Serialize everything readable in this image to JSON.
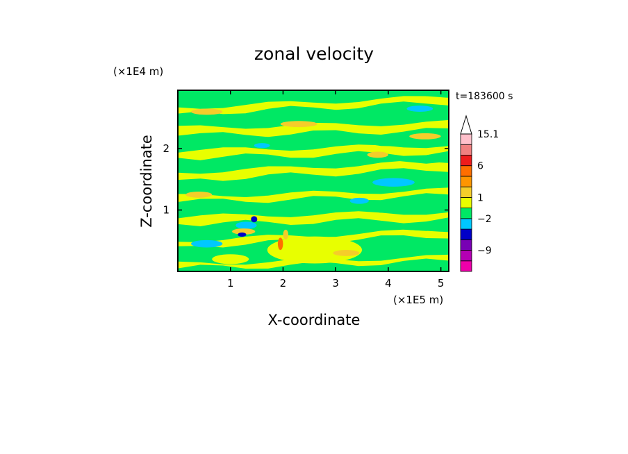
{
  "chart_data": {
    "type": "heatmap",
    "title": "zonal velocity",
    "xlabel": "X-coordinate",
    "ylabel": "Z-coordinate",
    "x_unit": "(×1E5 m)",
    "y_unit": "(×1E4 m)",
    "time_label": "t=183600 s",
    "xlim": [
      0,
      5.15
    ],
    "ylim": [
      0,
      2.95
    ],
    "x_ticks": [
      1,
      2,
      3,
      4,
      5
    ],
    "y_ticks": [
      1,
      2
    ],
    "colorbar": {
      "levels": [
        {
          "color": "#ee00aa"
        },
        {
          "color": "#b400b4"
        },
        {
          "color": "#7800b4"
        },
        {
          "color": "#0000c8"
        },
        {
          "color": "#00c8ff"
        },
        {
          "color": "#00e864"
        },
        {
          "color": "#e8ff00"
        },
        {
          "color": "#f5cd2a"
        },
        {
          "color": "#ff9500"
        },
        {
          "color": "#ff6e00"
        },
        {
          "color": "#ee1c1c"
        },
        {
          "color": "#f08080"
        },
        {
          "color": "#ffc0cb"
        }
      ],
      "labels": [
        {
          "text": "15.1",
          "level": 13
        },
        {
          "text": "6",
          "level": 10
        },
        {
          "text": "1",
          "level": 7
        },
        {
          "text": "−2",
          "level": 5
        },
        {
          "text": "−9",
          "level": 2
        }
      ],
      "extend_max": true
    },
    "field_colors": {
      "green": "#00e864",
      "yellow": "#e8ff00",
      "orange": "#f5cd2a",
      "cyan": "#00c8ff",
      "blue": "#0000c8",
      "red": "#ff6e00"
    }
  }
}
